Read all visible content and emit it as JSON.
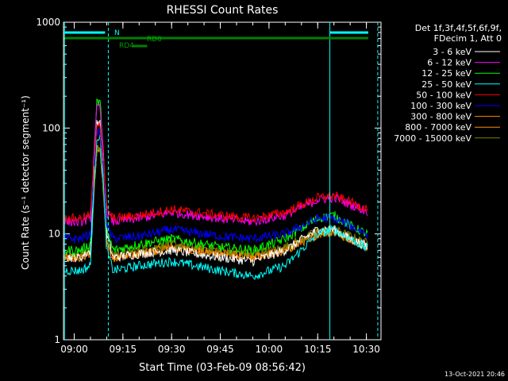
{
  "chart_data": {
    "type": "line",
    "title": "RHESSI Count Rates",
    "xlabel": "Start Time (03-Feb-09 08:56:42)",
    "ylabel": "Count Rate (s⁻¹ detector segment⁻¹)",
    "y_scale": "log",
    "xlim": [
      "08:56:42",
      "10:34:30"
    ],
    "ylim": [
      1,
      1000
    ],
    "x_ticks": [
      "09:00",
      "09:15",
      "09:30",
      "09:45",
      "10:00",
      "10:15",
      "10:30"
    ],
    "y_ticks": [
      "1",
      "10",
      "100",
      "1000"
    ],
    "legend_header": [
      "Det 1f,3f,4f,5f,6f,9f,",
      "FDecim 1, Att 0"
    ],
    "legend_position": "outside-right",
    "timestamp": "13-Oct-2021 20:46",
    "annotations": {
      "state_labels": [
        "N",
        "RD0",
        "RD4"
      ],
      "vertical_markers_time": [
        "08:57:00",
        "09:10:30",
        "10:18:45",
        "10:33:30"
      ]
    },
    "time_points": [
      "08:57",
      "09:02",
      "09:05",
      "09:06",
      "09:07",
      "09:08",
      "09:09",
      "09:10",
      "09:12",
      "09:20",
      "09:30",
      "09:45",
      "09:55",
      "10:05",
      "10:15",
      "10:20",
      "10:25",
      "10:33"
    ],
    "series": [
      {
        "name": "3 - 6 keV",
        "color": "#ffffff",
        "values": [
          6,
          6,
          7,
          35,
          120,
          110,
          40,
          10,
          6,
          6.5,
          7,
          6,
          5.5,
          7,
          11,
          11,
          9,
          7
        ]
      },
      {
        "name": "6 - 12 keV",
        "color": "#ff00ff",
        "values": [
          13,
          13,
          14,
          50,
          160,
          150,
          60,
          16,
          13,
          14,
          16,
          14,
          13,
          15,
          21,
          22,
          19,
          15
        ]
      },
      {
        "name": "12 - 25 keV",
        "color": "#00ff00",
        "values": [
          7,
          7,
          8,
          50,
          180,
          170,
          60,
          11,
          7,
          8,
          9,
          7.5,
          7,
          9,
          14,
          15,
          12,
          9
        ]
      },
      {
        "name": "25 - 50 keV",
        "color": "#00ffff",
        "values": [
          4.5,
          4.5,
          5,
          25,
          85,
          80,
          30,
          7,
          4.5,
          5,
          5.5,
          4.5,
          4,
          5,
          10,
          11,
          9,
          6.5
        ]
      },
      {
        "name": "50 - 100 keV",
        "color": "#ff0000",
        "values": [
          14,
          14,
          15,
          40,
          115,
          110,
          50,
          17,
          14,
          15,
          17,
          15,
          14,
          16,
          22,
          23,
          20,
          16
        ]
      },
      {
        "name": "100 - 300 keV",
        "color": "#0000ff",
        "values": [
          9,
          9,
          10,
          40,
          95,
          90,
          40,
          12,
          9,
          9.5,
          11,
          9.5,
          9,
          10,
          14,
          14,
          12,
          9
        ]
      },
      {
        "name": "300 - 800 keV",
        "color": "#ff8c00",
        "values": [
          6,
          6,
          6.5,
          22,
          65,
          60,
          25,
          8,
          6,
          6.5,
          7.5,
          6.5,
          6,
          7,
          10,
          10.5,
          9,
          7
        ]
      },
      {
        "name": "800 - 7000 keV",
        "color": "#ff8c00",
        "values": [
          6,
          6,
          6.5,
          22,
          64,
          60,
          24,
          8,
          6,
          6.5,
          7.5,
          6.5,
          6,
          7,
          10,
          10.5,
          9,
          7
        ]
      },
      {
        "name": "7000 - 15000 keV",
        "color": "#808000",
        "values": [
          6.5,
          6.5,
          7,
          22,
          64,
          60,
          25,
          8.5,
          6.5,
          7,
          8,
          7,
          6.5,
          7.5,
          10.5,
          11,
          9.5,
          7.5
        ]
      }
    ]
  }
}
